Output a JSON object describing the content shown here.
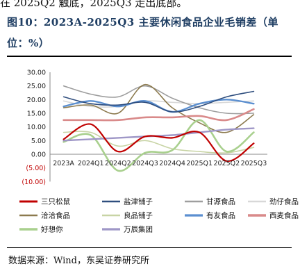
{
  "top_text": "在 2025Q2 触底，2025Q3 走出底部。",
  "figure_title": "图10：2023A-2025Q3 主要休闲食品企业毛销差（单位：%）",
  "source": "数据来源：Wind，东吴证券研究所",
  "chart_data": {
    "type": "line",
    "categories": [
      "2023A",
      "2024Q1",
      "2024Q2",
      "2024Q3",
      "2024Q4",
      "2025Q1",
      "2025Q2",
      "2025Q3"
    ],
    "ylim": [
      -10,
      30
    ],
    "yticks": [
      "30.00",
      "25.00",
      "20.00",
      "15.00",
      "10.00",
      "5.00",
      "0.00",
      "(5.00)",
      "(10.00)"
    ],
    "grid": false,
    "legend_position": "bottom",
    "series": [
      {
        "name": "三只松鼠",
        "color": "#c00000",
        "width": 2.2,
        "values": [
          5.5,
          11.0,
          1.0,
          6.5,
          6.0,
          8.0,
          -2.5,
          4.0
        ]
      },
      {
        "name": "盐津铺子",
        "color": "#2f4e7e",
        "width": 1.6,
        "values": [
          21.0,
          18.5,
          18.0,
          19.0,
          15.5,
          17.5,
          21.0,
          23.0
        ]
      },
      {
        "name": "甘源食品",
        "color": "#9e9e9e",
        "width": 1.6,
        "values": [
          25.0,
          22.0,
          21.0,
          25.0,
          20.5,
          17.0,
          15.0,
          15.0
        ]
      },
      {
        "name": "劲仔食品",
        "color": "#d8d8d8",
        "width": 1.6,
        "values": [
          19.5,
          17.5,
          17.5,
          19.5,
          19.0,
          18.5,
          19.0,
          19.5
        ]
      },
      {
        "name": "洽洽食品",
        "color": "#8c7a4e",
        "width": 1.6,
        "values": [
          17.0,
          18.0,
          15.0,
          25.5,
          17.0,
          11.5,
          8.0,
          14.5
        ]
      },
      {
        "name": "良品铺子",
        "color": "#c8d4a5",
        "width": 1.6,
        "values": [
          8.0,
          8.0,
          3.0,
          5.0,
          2.0,
          1.0,
          0.5,
          2.5
        ]
      },
      {
        "name": "有友食品",
        "color": "#5b8fd0",
        "width": 2.4,
        "values": [
          17.5,
          19.5,
          17.5,
          19.5,
          15.5,
          18.5,
          20.0,
          18.5
        ]
      },
      {
        "name": "西麦食品",
        "color": "#d98a8a",
        "width": 2.6,
        "values": [
          12.5,
          12.5,
          12.5,
          13.5,
          13.5,
          14.0,
          12.5,
          16.5
        ]
      },
      {
        "name": "好想你",
        "color": "#a9d08e",
        "width": 2.6,
        "values": [
          4.5,
          7.0,
          -6.0,
          0.5,
          1.5,
          12.5,
          1.0,
          8.0
        ]
      },
      {
        "name": "万辰集团",
        "color": "#9f97c7",
        "width": 2.4,
        "values": [
          5.0,
          5.5,
          6.0,
          6.5,
          7.0,
          8.0,
          9.0,
          9.5
        ]
      }
    ]
  }
}
